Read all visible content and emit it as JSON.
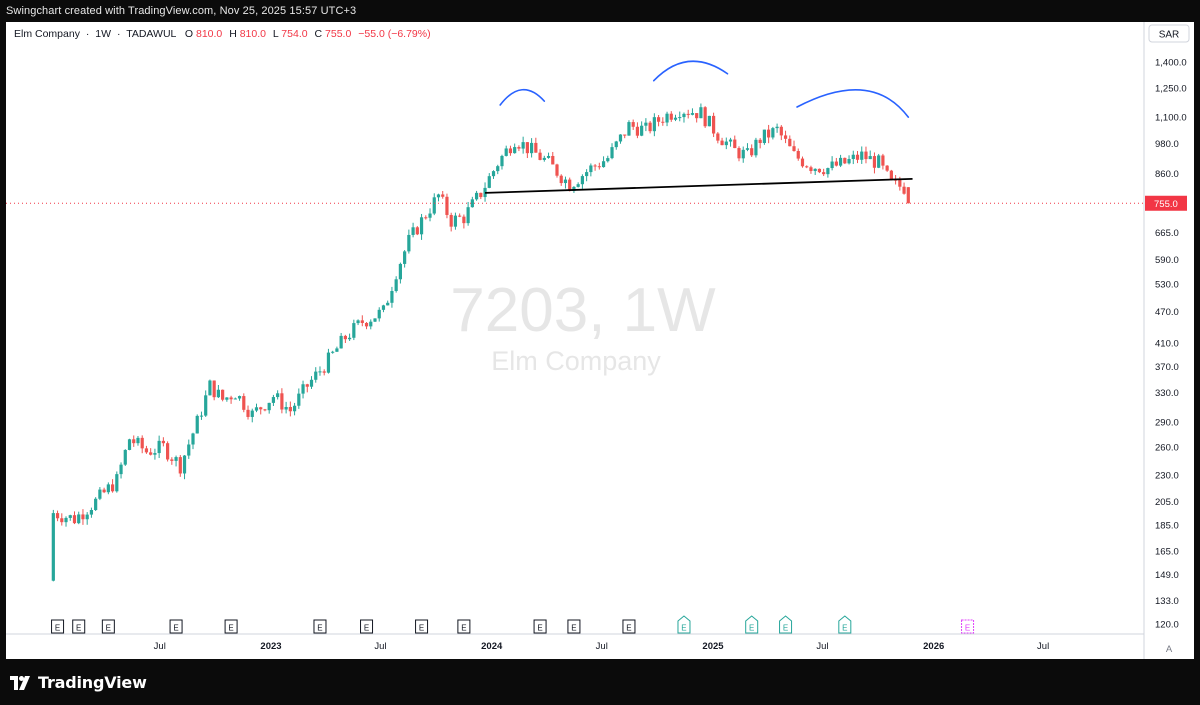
{
  "header": {
    "caption": "Swingchart created with TradingView.com, Nov 25, 2025 15:57 UTC+3"
  },
  "legend": {
    "name": "Elm Company",
    "sep1": "·",
    "interval": "1W",
    "sep2": "·",
    "exchange": "TADAWUL",
    "o_label": "O",
    "o_value": "810.0",
    "h_label": "H",
    "h_value": "810.0",
    "l_label": "L",
    "l_value": "754.0",
    "c_label": "C",
    "c_value": "755.0",
    "change": "−55.0 (−6.79%)"
  },
  "currency": "SAR",
  "watermark": {
    "symbol": "7203, 1W",
    "name": "Elm Company"
  },
  "scale_button": "A",
  "footer": {
    "brand": "TradingView"
  },
  "colors": {
    "up": "#26a69a",
    "down": "#ef5350",
    "drawing_blue": "#2962ff",
    "neckline": "#000000",
    "last_price": "#f23645",
    "earnings_future": "#e040fb"
  },
  "chart_data": {
    "type": "candlestick",
    "interval": "1W",
    "scale": "log",
    "ylim": [
      118,
      1500
    ],
    "x_ticks": [
      "Jul",
      "2023",
      "Jul",
      "2024",
      "Jul",
      "2025",
      "Jul",
      "2026",
      "Jul"
    ],
    "y_ticks": [
      120.0,
      133.0,
      149.0,
      165.0,
      185.0,
      205.0,
      230.0,
      260.0,
      290.0,
      330.0,
      370.0,
      410.0,
      470.0,
      530.0,
      590.0,
      665.0,
      755.0,
      860.0,
      980.0,
      1100.0,
      1250.0,
      1400.0
    ],
    "last_price": 755.0,
    "close_path": [
      [
        "2022-01-06",
        195
      ],
      [
        "2022-02-10",
        190
      ],
      [
        "2022-03-17",
        205
      ],
      [
        "2022-04-21",
        225
      ],
      [
        "2022-05-12",
        270
      ],
      [
        "2022-06-09",
        255
      ],
      [
        "2022-07-07",
        260
      ],
      [
        "2022-08-04",
        240
      ],
      [
        "2022-09-01",
        290
      ],
      [
        "2022-09-22",
        340
      ],
      [
        "2022-10-13",
        320
      ],
      [
        "2022-11-03",
        330
      ],
      [
        "2022-12-01",
        300
      ],
      [
        "2023-01-05",
        325
      ],
      [
        "2023-02-02",
        305
      ],
      [
        "2023-03-02",
        340
      ],
      [
        "2023-04-06",
        380
      ],
      [
        "2023-05-04",
        420
      ],
      [
        "2023-06-01",
        450
      ],
      [
        "2023-07-06",
        470
      ],
      [
        "2023-07-27",
        560
      ],
      [
        "2023-08-17",
        640
      ],
      [
        "2023-09-14",
        720
      ],
      [
        "2023-10-05",
        780
      ],
      [
        "2023-10-26",
        700
      ],
      [
        "2023-11-16",
        710
      ],
      [
        "2023-12-14",
        790
      ],
      [
        "2024-01-11",
        900
      ],
      [
        "2024-02-08",
        1000
      ],
      [
        "2024-03-07",
        950
      ],
      [
        "2024-04-04",
        900
      ],
      [
        "2024-05-09",
        820
      ],
      [
        "2024-06-13",
        880
      ],
      [
        "2024-07-11",
        920
      ],
      [
        "2024-08-15",
        1060
      ],
      [
        "2024-09-12",
        1040
      ],
      [
        "2024-10-10",
        1100
      ],
      [
        "2024-11-07",
        1140
      ],
      [
        "2024-12-12",
        1120
      ],
      [
        "2025-01-09",
        1020
      ],
      [
        "2025-02-06",
        950
      ],
      [
        "2025-02-27",
        930
      ],
      [
        "2025-03-20",
        1000
      ],
      [
        "2025-04-17",
        1040
      ],
      [
        "2025-05-15",
        930
      ],
      [
        "2025-06-12",
        890
      ],
      [
        "2025-07-10",
        880
      ],
      [
        "2025-08-07",
        900
      ],
      [
        "2025-09-04",
        930
      ],
      [
        "2025-10-02",
        900
      ],
      [
        "2025-10-23",
        820
      ],
      [
        "2025-11-13",
        810
      ],
      [
        "2025-11-20",
        755
      ]
    ],
    "neckline": [
      [
        "2023-12-21",
        790
      ],
      [
        "2025-11-27",
        840
      ]
    ],
    "earnings_dates": [
      "2022-01-13",
      "2022-02-17",
      "2022-04-07",
      "2022-07-28",
      "2022-10-27",
      "2023-03-23",
      "2023-06-08",
      "2023-09-07",
      "2023-11-16",
      "2024-03-21",
      "2024-05-16",
      "2024-08-15",
      "2024-11-14",
      "2025-03-06",
      "2025-05-01",
      "2025-08-07"
    ],
    "upcoming_earnings": "2026-02-26",
    "series": [
      {
        "type": "drawing",
        "values": []
      }
    ]
  }
}
